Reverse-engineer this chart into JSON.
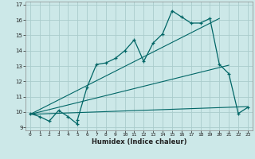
{
  "xlabel": "Humidex (Indice chaleur)",
  "bg_color": "#cce8e8",
  "grid_color": "#aacccc",
  "line_color": "#006666",
  "xlim": [
    -0.5,
    23.5
  ],
  "ylim": [
    8.8,
    17.2
  ],
  "xticks": [
    0,
    1,
    2,
    3,
    4,
    5,
    6,
    7,
    8,
    9,
    10,
    11,
    12,
    13,
    14,
    15,
    16,
    17,
    18,
    19,
    20,
    21,
    22,
    23
  ],
  "yticks": [
    9,
    10,
    11,
    12,
    13,
    14,
    15,
    16,
    17
  ],
  "main_x": [
    0,
    1,
    2,
    3,
    4,
    5,
    5,
    6,
    7,
    8,
    9,
    10,
    11,
    12,
    13,
    14,
    15,
    16,
    17,
    18,
    19,
    20,
    21,
    22,
    23
  ],
  "main_y": [
    9.9,
    9.7,
    9.4,
    10.1,
    9.7,
    9.2,
    9.5,
    11.6,
    13.1,
    13.2,
    13.5,
    14.0,
    14.7,
    13.3,
    14.5,
    15.1,
    16.6,
    16.2,
    15.8,
    15.8,
    16.1,
    13.1,
    12.5,
    9.9,
    10.3
  ],
  "line1_x": [
    0,
    23
  ],
  "line1_y": [
    9.85,
    10.35
  ],
  "line2_x": [
    0,
    21
  ],
  "line2_y": [
    9.85,
    13.05
  ],
  "line3_x": [
    0,
    20
  ],
  "line3_y": [
    9.85,
    16.1
  ]
}
